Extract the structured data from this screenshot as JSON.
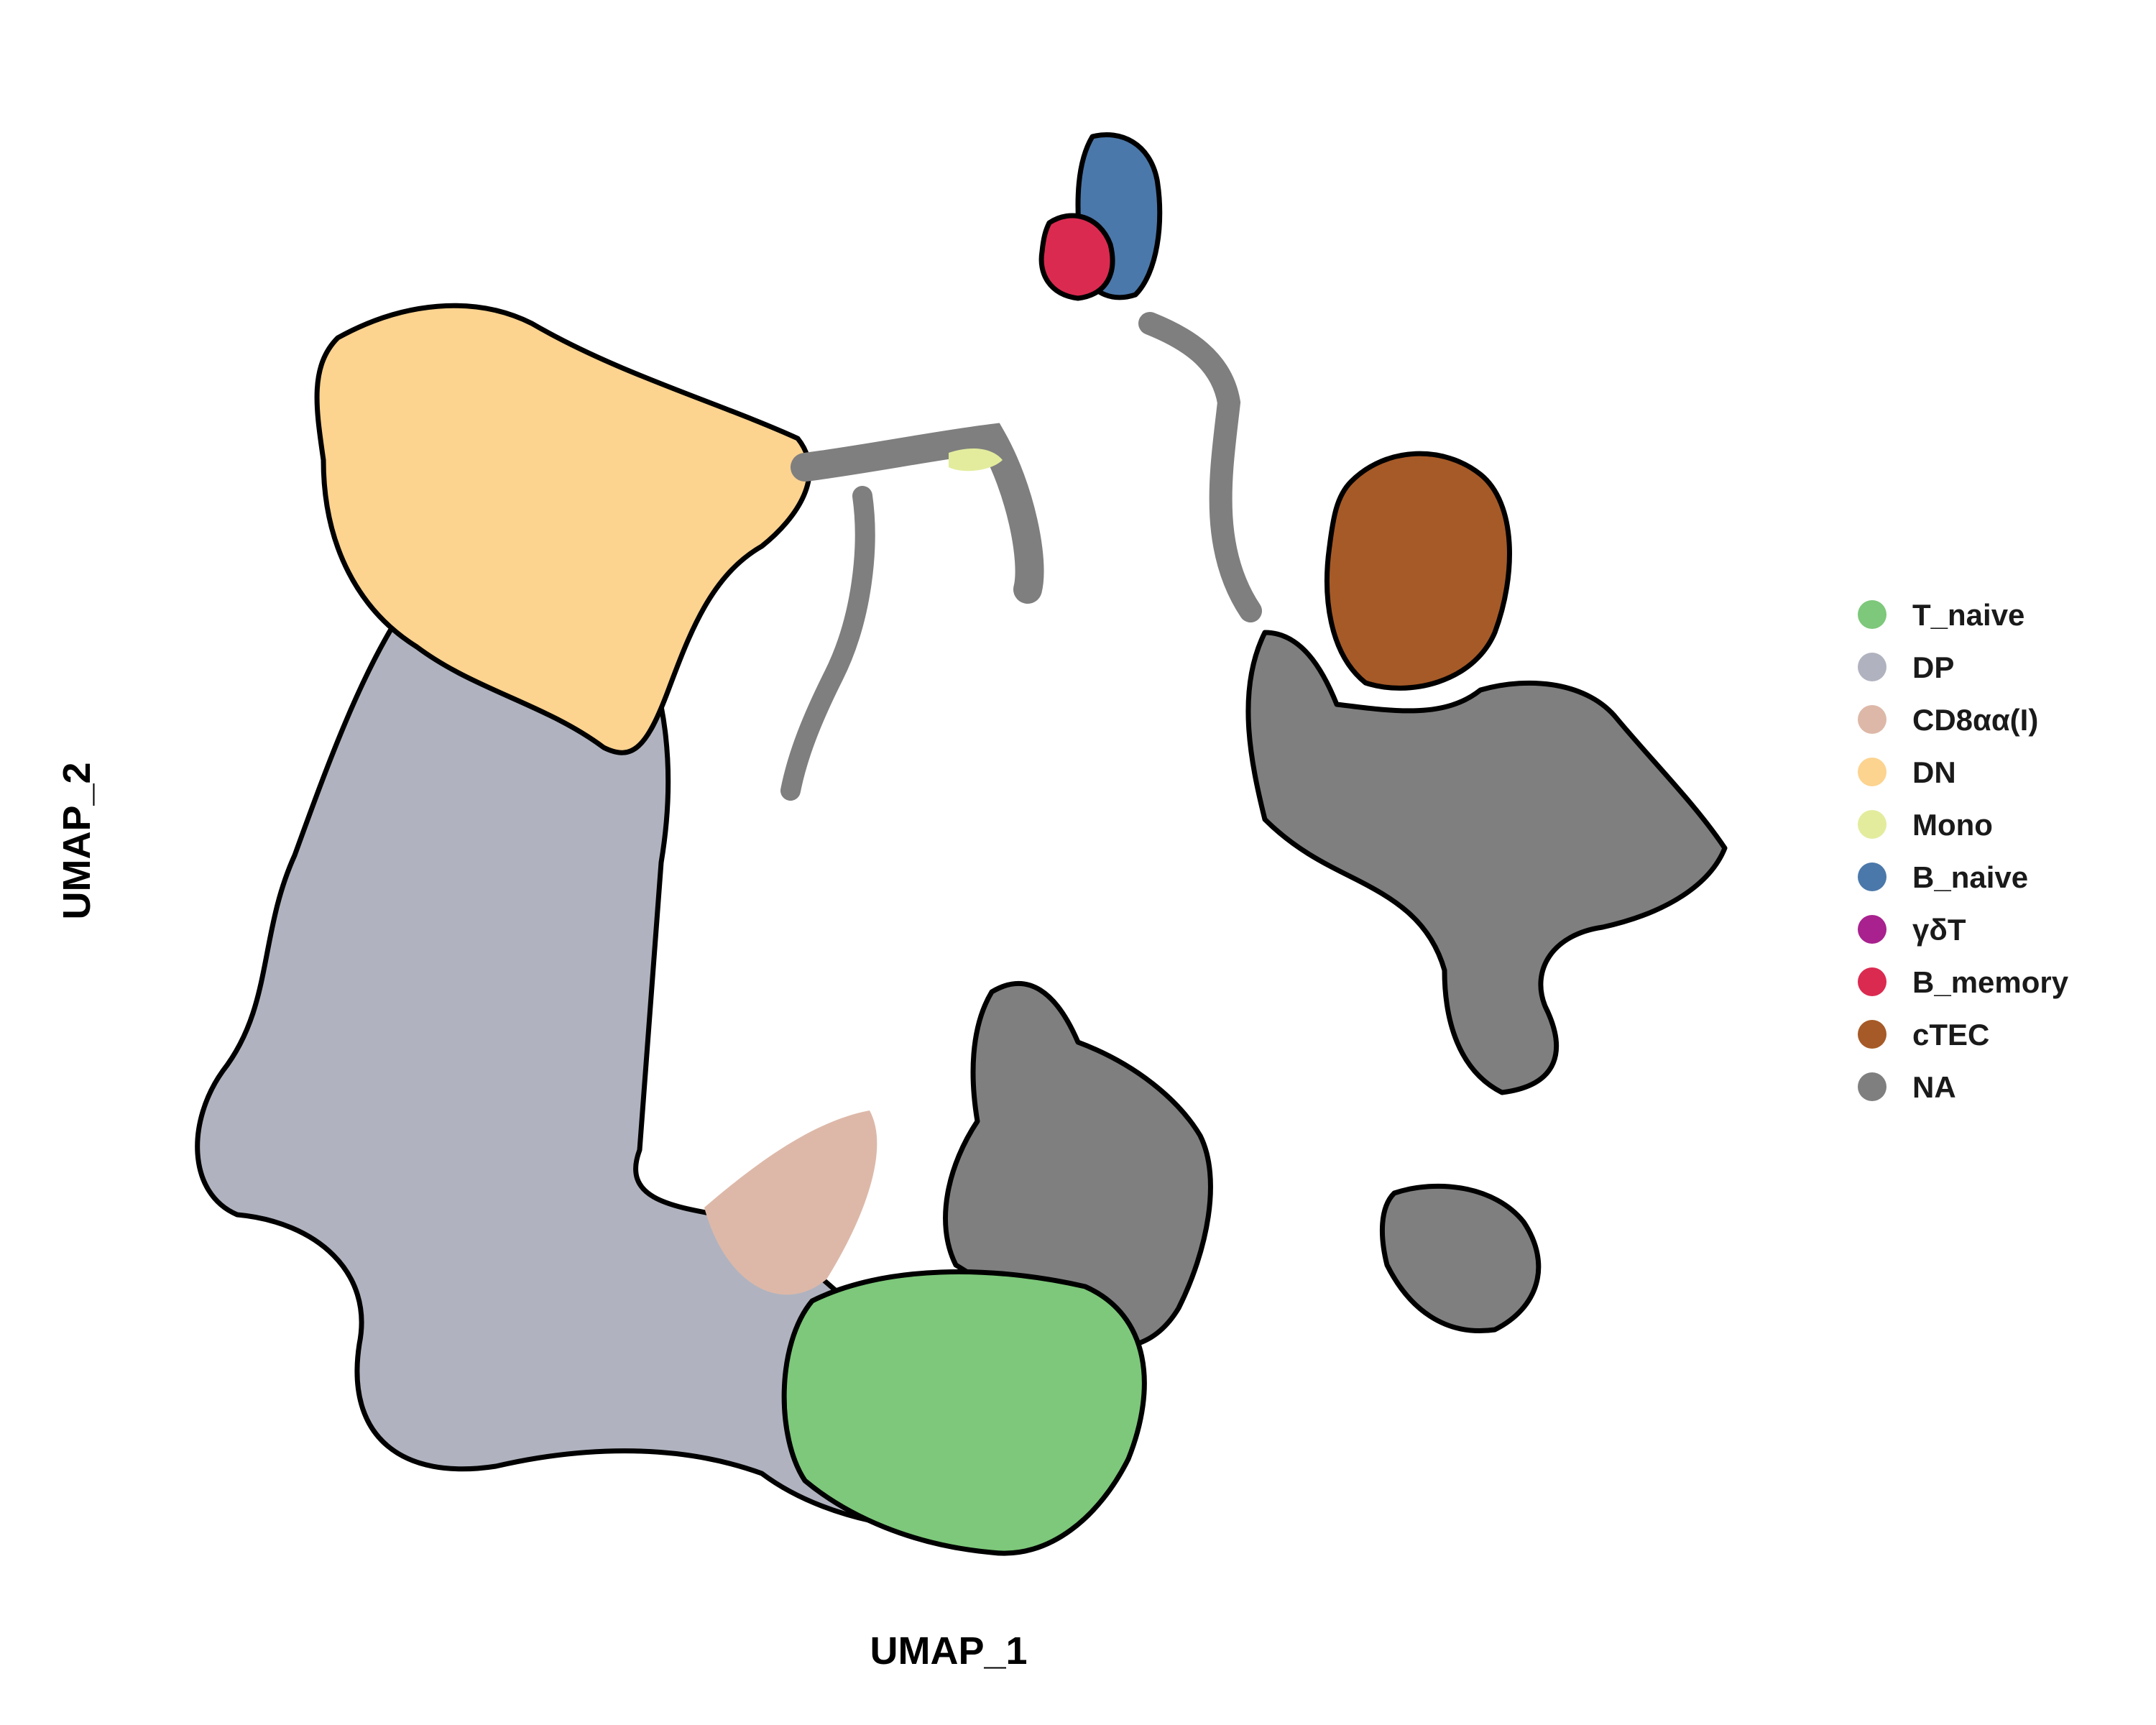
{
  "chart_data": {
    "type": "scatter",
    "title": "",
    "xlabel": "UMAP_1",
    "ylabel": "UMAP_2",
    "grid": false,
    "axes_visible": false,
    "legend_placement": "right",
    "legend": [
      {
        "name": "T_naive",
        "color": "#7DC87A"
      },
      {
        "name": "DP",
        "color": "#B0B3BF"
      },
      {
        "name": "CD8αα(I)",
        "color": "#DDB8A8"
      },
      {
        "name": "DN",
        "color": "#FCD38F"
      },
      {
        "name": "Mono",
        "color": "#E3EC9D"
      },
      {
        "name": "B_naive",
        "color": "#4B78AA"
      },
      {
        "name": "γδT",
        "color": "#A8218E"
      },
      {
        "name": "B_memory",
        "color": "#DB2A50"
      },
      {
        "name": "cTEC",
        "color": "#A65A27"
      },
      {
        "name": "NA",
        "color": "#7F7F7F"
      }
    ]
  }
}
